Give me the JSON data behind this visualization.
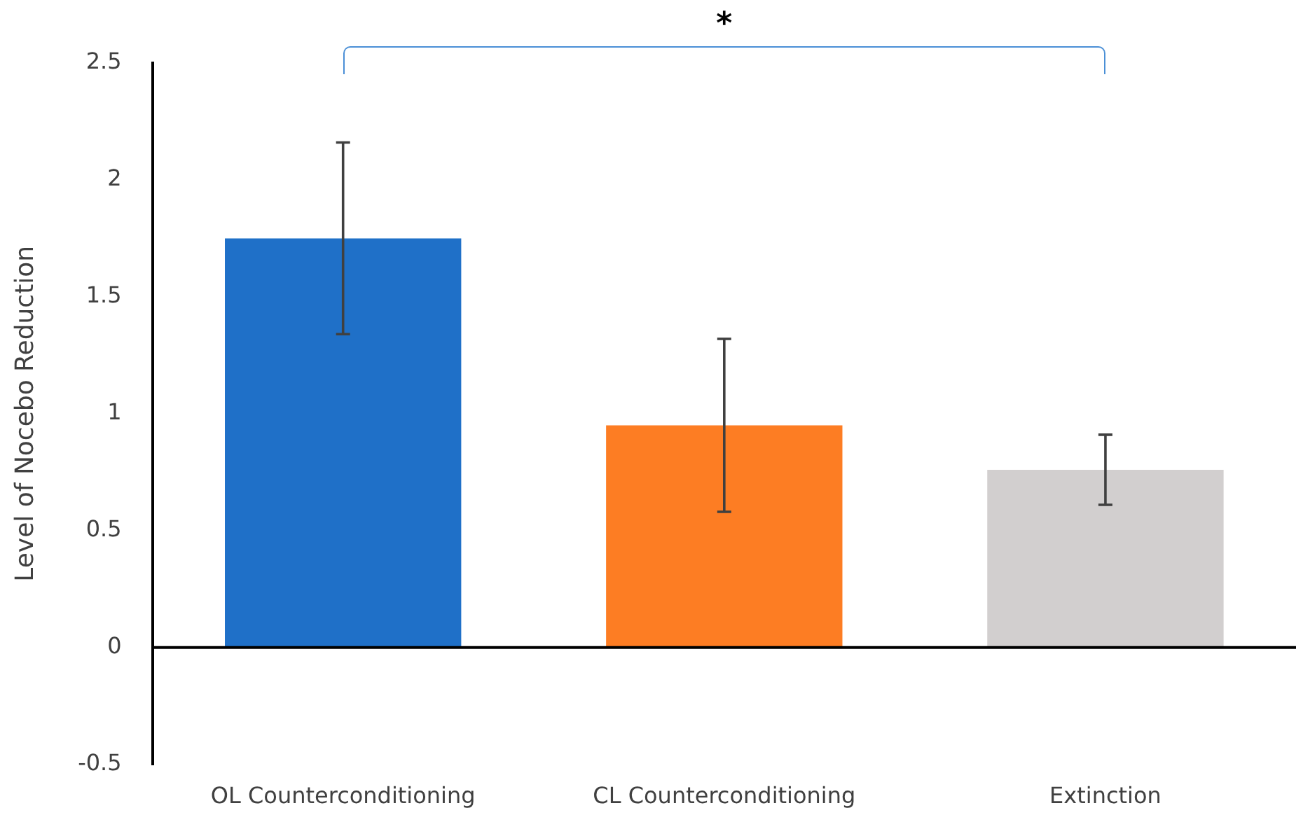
{
  "chart_data": {
    "type": "bar",
    "ylabel": "Level of Nocebo Reduction",
    "categories": [
      "OL Counterconditioning",
      "CL Counterconditioning",
      "Extinction"
    ],
    "values": [
      1.75,
      0.95,
      0.76
    ],
    "colors": [
      "#1f70c8",
      "#fd7d23",
      "#d2cfcf"
    ],
    "errors": [
      [
        1.34,
        2.16
      ],
      [
        0.58,
        1.32
      ],
      [
        0.61,
        0.91
      ]
    ],
    "ylim": [
      -0.5,
      2.5
    ],
    "yticks": [
      -0.5,
      0,
      0.5,
      1,
      1.5,
      2,
      2.5
    ],
    "grid": false,
    "legend": false,
    "ref_lines": [
      {
        "axis": "y",
        "value": 0,
        "color": "#000000"
      }
    ],
    "annotations": [
      {
        "text": "*"
      }
    ]
  }
}
